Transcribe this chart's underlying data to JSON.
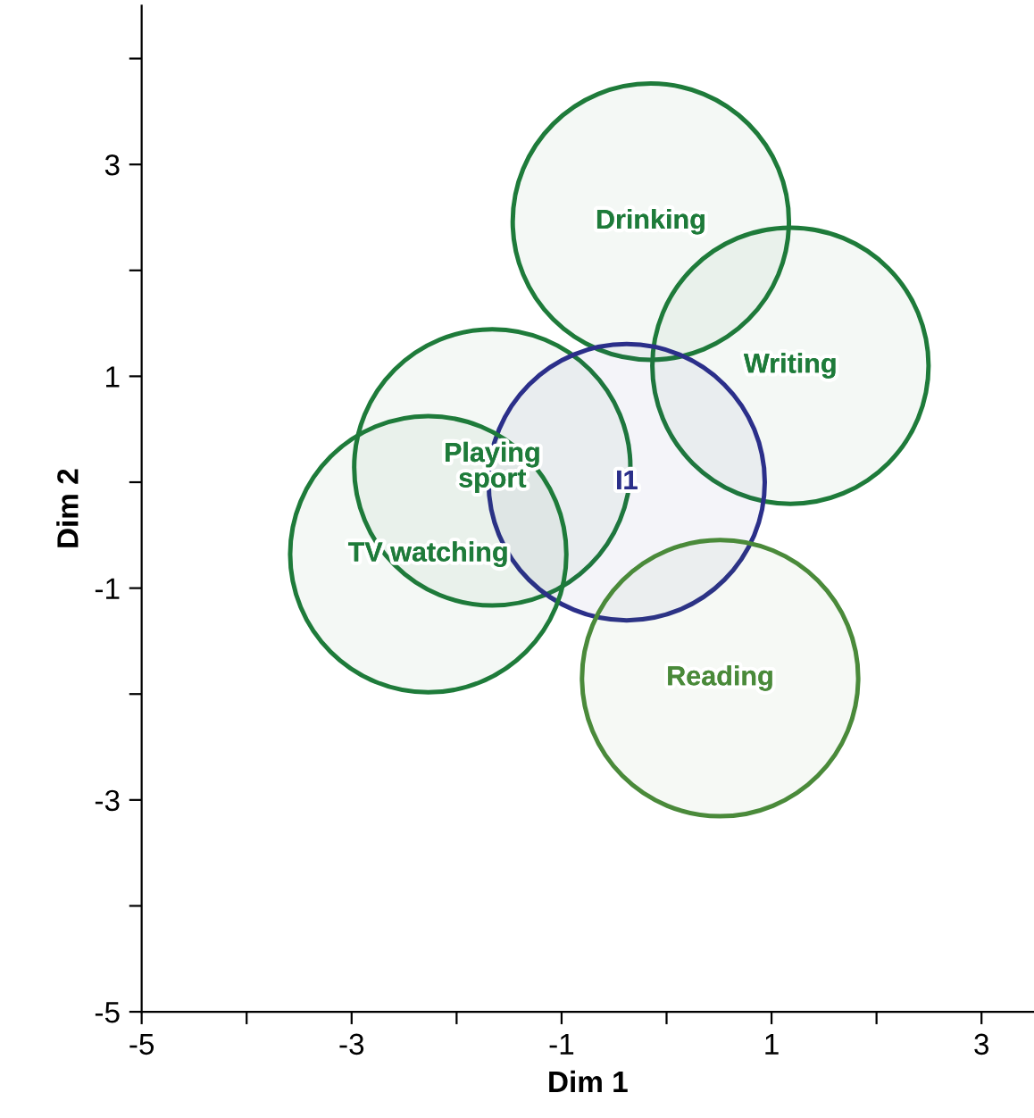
{
  "chart_data": {
    "type": "bubble",
    "xlabel": "Dim 1",
    "ylabel": "Dim 2",
    "xlim": [
      -5,
      3.5
    ],
    "ylim": [
      -5,
      4.5
    ],
    "xticks": [
      -5,
      {
        "value": -4,
        "label": null
      },
      -3,
      {
        "value": -2,
        "label": null
      },
      -1,
      {
        "value": 0,
        "label": null
      },
      1,
      {
        "value": 2,
        "label": null
      },
      3
    ],
    "yticks": [
      -5,
      {
        "value": -4,
        "label": null
      },
      -3,
      {
        "value": -2,
        "label": null
      },
      -1,
      {
        "value": 0,
        "label": null
      },
      1,
      {
        "value": 2,
        "label": null
      },
      3,
      {
        "value": 4,
        "label": null
      }
    ],
    "grid": false,
    "legend": false,
    "series": [
      {
        "name": "Drinking",
        "color": "#1e7b3a",
        "x": [
          -0.15
        ],
        "values": [
          2.46
        ],
        "sizes": [
          1
        ]
      },
      {
        "name": "Writing",
        "color": "#1e7b3a",
        "x": [
          1.18
        ],
        "values": [
          1.1
        ],
        "sizes": [
          1
        ]
      },
      {
        "name": "Playing\nsport",
        "color": "#1e7b3a",
        "x": [
          -1.66
        ],
        "values": [
          0.14
        ],
        "sizes": [
          1
        ]
      },
      {
        "name": "I1",
        "color": "#2b2f8a",
        "x": [
          -0.38
        ],
        "values": [
          0.0
        ],
        "sizes": [
          1
        ]
      },
      {
        "name": "TV watching",
        "color": "#1e7b3a",
        "x": [
          -2.27
        ],
        "values": [
          -0.68
        ],
        "sizes": [
          1
        ]
      },
      {
        "name": "Reading",
        "color": "#4a8a3a",
        "x": [
          0.51
        ],
        "values": [
          -1.85
        ],
        "sizes": [
          1
        ]
      }
    ]
  }
}
